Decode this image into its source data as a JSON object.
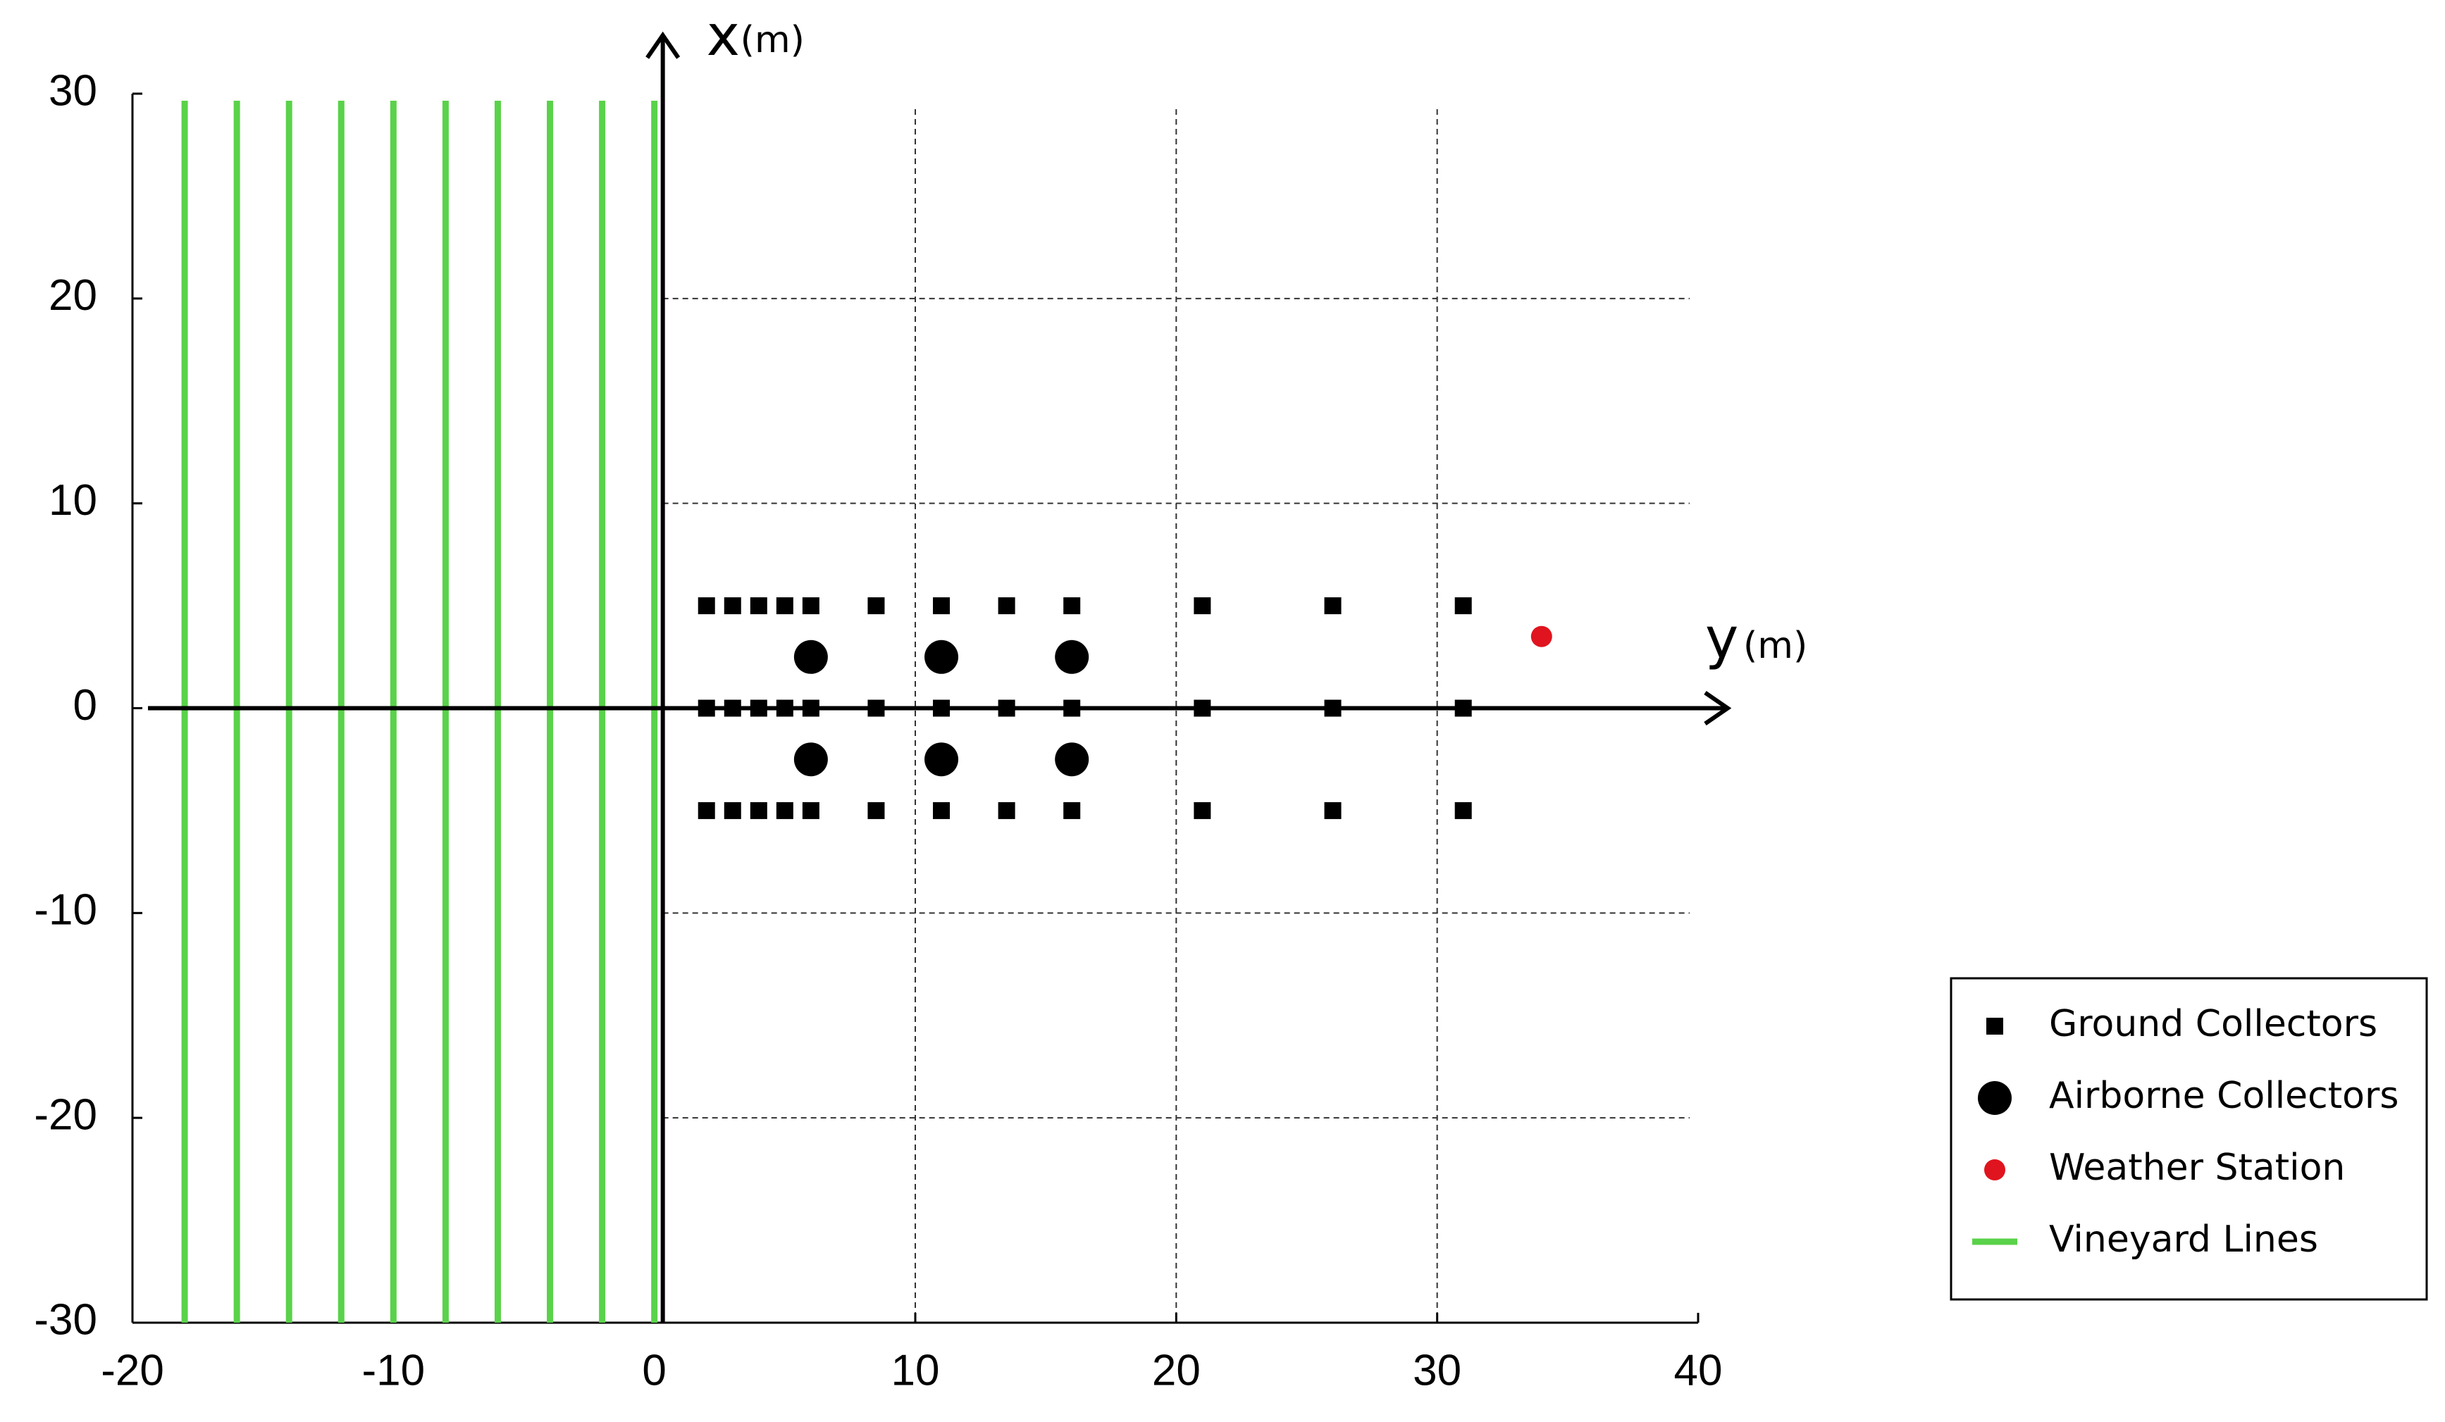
{
  "chart_data": {
    "type": "scatter",
    "x_label": "y",
    "x_unit": "(m)",
    "y_label": "x",
    "y_unit": "(m)",
    "xlim": [
      -20,
      40
    ],
    "ylim": [
      -30,
      30
    ],
    "xticks": [
      -20,
      -10,
      0,
      10,
      20,
      30,
      40
    ],
    "yticks": [
      -30,
      -20,
      -10,
      0,
      10,
      20,
      30
    ],
    "grid": true,
    "legend": "lower right",
    "series": [
      {
        "name": "Ground Collectors",
        "color": "#000000",
        "marker": "square",
        "x": [
          2,
          3,
          4,
          5,
          6,
          8.5,
          11,
          13.5,
          16,
          21,
          26,
          31,
          2,
          3,
          4,
          5,
          6,
          8.5,
          11,
          13.5,
          16,
          21,
          26,
          31,
          2,
          3,
          4,
          5,
          6,
          8.5,
          11,
          13.5,
          16,
          21,
          26,
          31
        ],
        "values": [
          5,
          5,
          5,
          5,
          5,
          5,
          5,
          5,
          5,
          5,
          5,
          5,
          0,
          0,
          0,
          0,
          0,
          0,
          0,
          0,
          0,
          0,
          0,
          0,
          -5,
          -5,
          -5,
          -5,
          -5,
          -5,
          -5,
          -5,
          -5,
          -5,
          -5,
          -5
        ]
      },
      {
        "name": "Airborne Collectors",
        "color": "#000000",
        "marker": "circle",
        "x": [
          6,
          11,
          16,
          6,
          11,
          16
        ],
        "values": [
          2.5,
          2.5,
          2.5,
          -2.5,
          -2.5,
          -2.5
        ]
      },
      {
        "name": "Weather Station",
        "color": "#e0141e",
        "marker": "dot",
        "x": [
          34
        ],
        "values": [
          3.5
        ]
      },
      {
        "name": "Vineyard Lines",
        "color": "#5ad24a",
        "marker": "vline",
        "x": [
          -18,
          -16,
          -14,
          -12,
          -10,
          -8,
          -6,
          -4,
          -2,
          0
        ]
      }
    ]
  }
}
